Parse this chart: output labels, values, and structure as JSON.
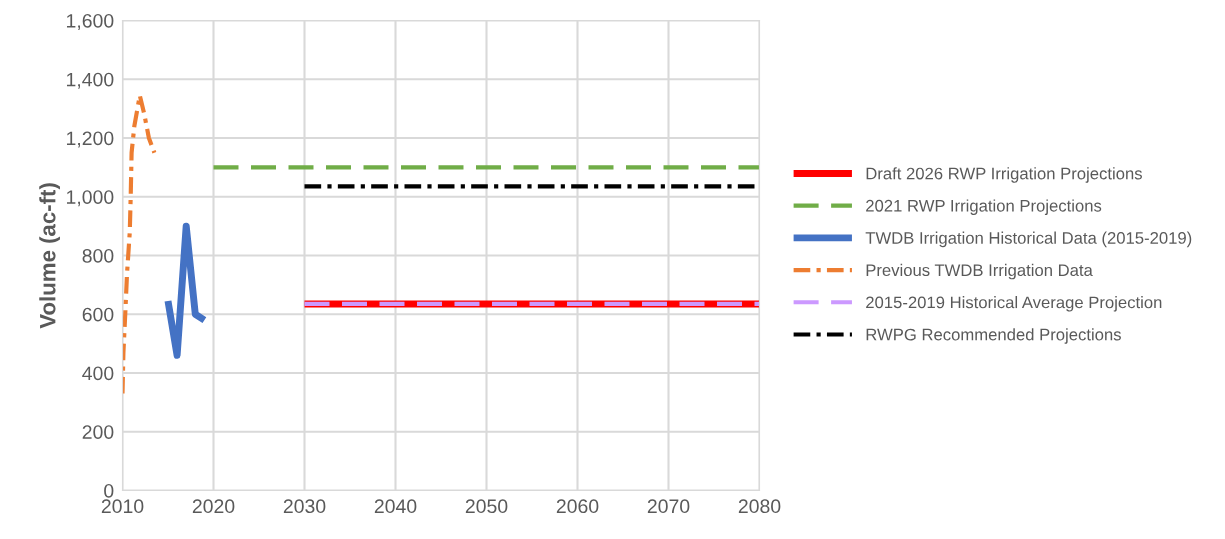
{
  "chart_data": {
    "type": "line",
    "ylabel": "Volume (ac-ft)",
    "xlim": [
      2010,
      2080
    ],
    "xticks": [
      2010,
      2020,
      2030,
      2040,
      2050,
      2060,
      2070,
      2080
    ],
    "ylim": [
      0,
      1600
    ],
    "yticks": [
      0,
      {
        "value": 200,
        "label": "200"
      },
      {
        "value": 400,
        "label": "400"
      },
      {
        "value": 600,
        "label": "600"
      },
      {
        "value": 800,
        "label": "800"
      },
      {
        "value": 1000,
        "label": "1,000"
      },
      {
        "value": 1200,
        "label": "1,200"
      },
      {
        "value": 1400,
        "label": "1,400"
      },
      {
        "value": 1600,
        "label": "1,600"
      }
    ],
    "grid": true,
    "legend": "right",
    "marker": "none",
    "series": [
      {
        "name": "Draft 2026 RWP Irrigation Projections",
        "color": "#ff0000",
        "line_style": "solid",
        "x": [
          2030,
          2080
        ],
        "values": [
          635,
          635
        ]
      },
      {
        "name": "2021 RWP Irrigation Projections",
        "color": "#70ad47",
        "line_style": "dashed",
        "x": [
          2020,
          2080
        ],
        "values": [
          1100,
          1100
        ]
      },
      {
        "name": "TWDB Irrigation Historical Data (2015-2019)",
        "color": "#4472c4",
        "line_style": "solid",
        "x": [
          2015,
          2016,
          2017,
          2018,
          2019
        ],
        "values": [
          645,
          460,
          900,
          600,
          580
        ]
      },
      {
        "name": "Previous TWDB Irrigation Data",
        "color": "#ed7d31",
        "line_style": "dashdot",
        "x": [
          2010.0,
          2010.1,
          2010.3,
          2010.5,
          2010.8,
          2010.9,
          2011.0,
          2011.3,
          2011.9,
          2012.4,
          2012.9,
          2013.5
        ],
        "values": [
          330,
          470,
          600,
          740,
          880,
          1000,
          1150,
          1240,
          1345,
          1280,
          1200,
          1150
        ]
      },
      {
        "name": "2015-2019 Historical Average Projection",
        "color": "#cc99ff",
        "line_style": "dashed",
        "x": [
          2030,
          2080
        ],
        "values": [
          635,
          635
        ]
      },
      {
        "name": "RWPG Recommended Projections",
        "color": "#000000",
        "line_style": "dashdot",
        "x": [
          2030,
          2080
        ],
        "values": [
          1035,
          1035
        ]
      }
    ]
  }
}
